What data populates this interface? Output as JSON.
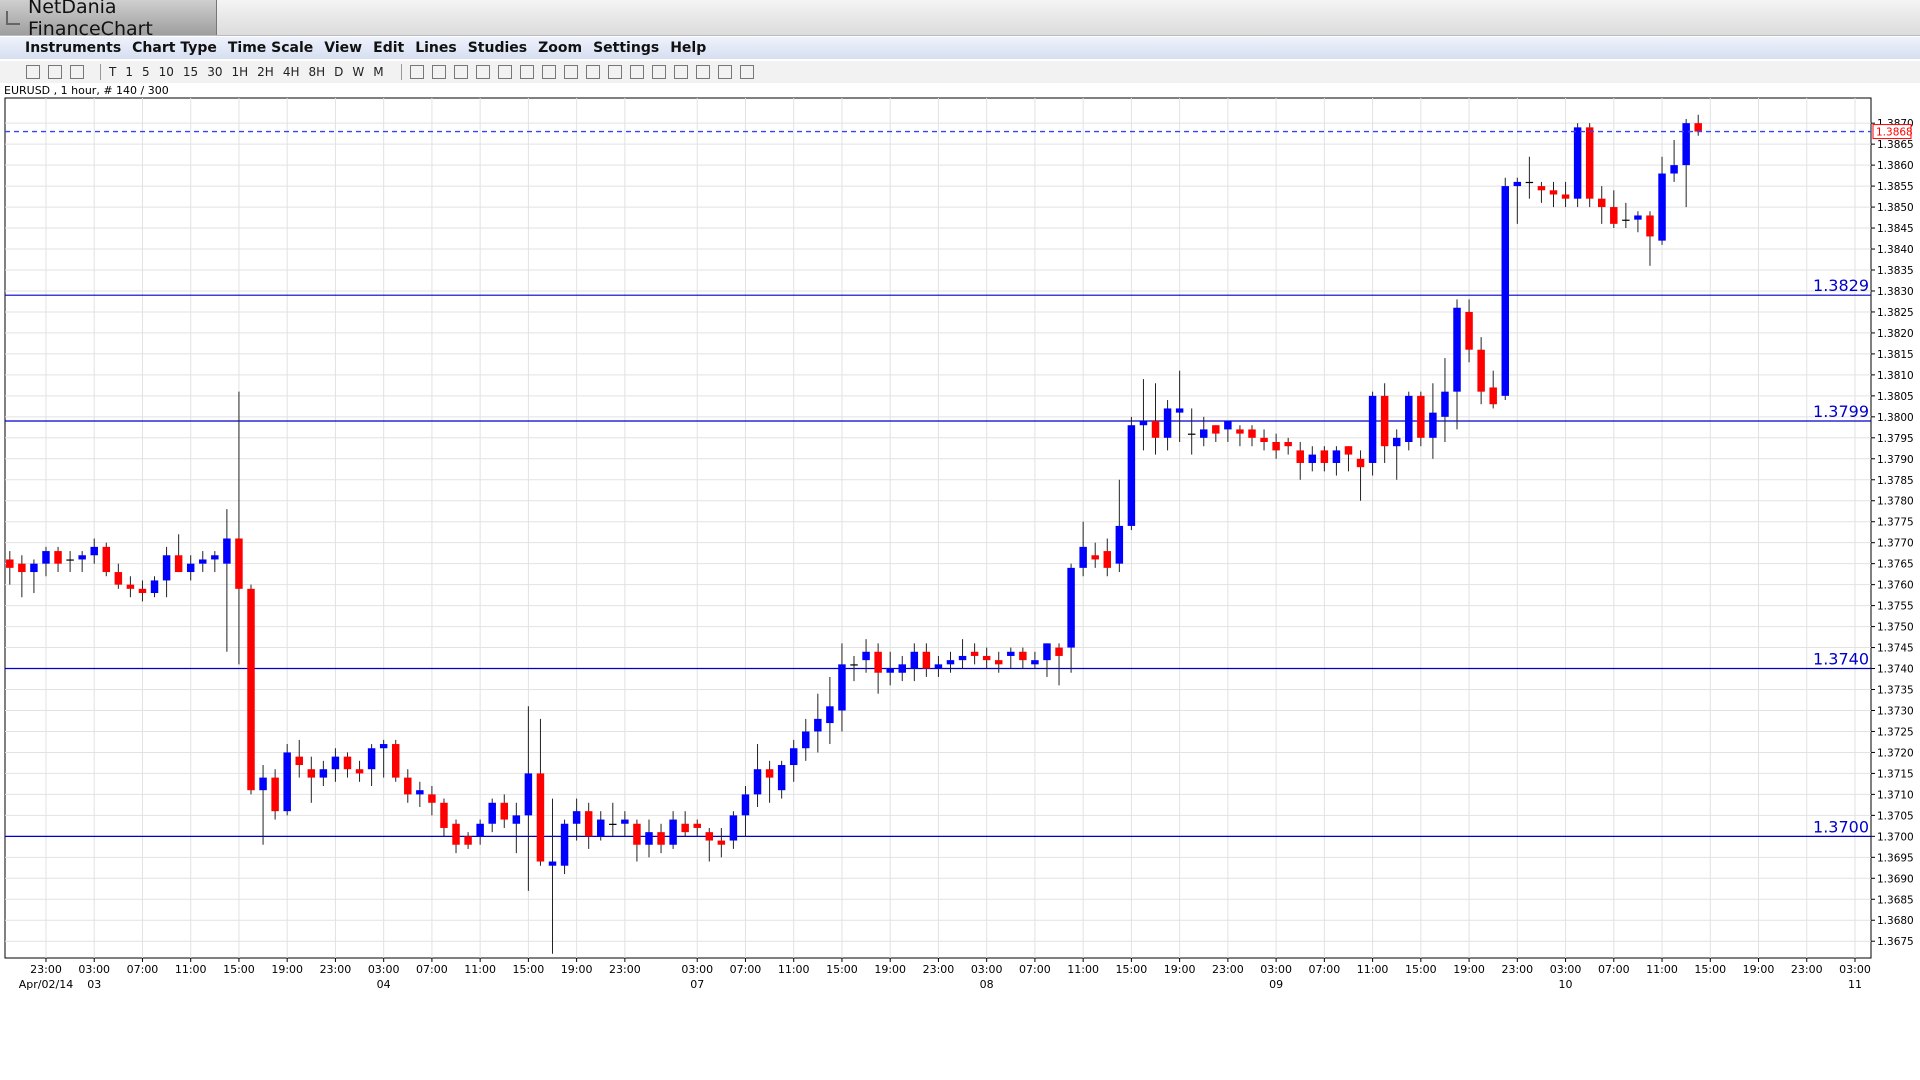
{
  "ui": {
    "app_title": "NetDania FinanceChart",
    "menu": [
      "Instruments",
      "Chart Type",
      "Time Scale",
      "View",
      "Edit",
      "Lines",
      "Studies",
      "Zoom",
      "Settings",
      "Help"
    ],
    "toolbar": [
      "T",
      "1",
      "5",
      "10",
      "15",
      "30",
      "1H",
      "2H",
      "4H",
      "8H",
      "D",
      "W",
      "M"
    ]
  },
  "chart_data": {
    "type": "candlestick",
    "subtitle": "EURUSD , 1 hour, # 140 / 300",
    "up_color": "#0000ff",
    "down_color": "#ff0000",
    "grid": true,
    "categories": [
      null,
      null,
      null,
      "23:00",
      null,
      null,
      null,
      "03:00",
      null,
      null,
      null,
      "07:00",
      null,
      null,
      null,
      "11:00",
      null,
      null,
      null,
      "15:00",
      null,
      null,
      null,
      "19:00",
      null,
      null,
      null,
      "23:00",
      null,
      null,
      null,
      "03:00",
      null,
      null,
      null,
      "07:00",
      null,
      null,
      null,
      "11:00",
      null,
      null,
      null,
      "15:00",
      null,
      null,
      null,
      "19:00",
      null,
      null,
      null,
      "23:00",
      null,
      null,
      null,
      null,
      null,
      "03:00",
      null,
      null,
      null,
      "07:00",
      null,
      null,
      null,
      "11:00",
      null,
      null,
      null,
      "15:00",
      null,
      null,
      null,
      "19:00",
      null,
      null,
      null,
      "23:00",
      null,
      null,
      null,
      "03:00",
      null,
      null,
      null,
      "07:00",
      null,
      null,
      null,
      "11:00",
      null,
      null,
      null,
      "15:00",
      null,
      null,
      null,
      "19:00",
      null,
      null,
      null,
      "23:00",
      null,
      null,
      null,
      "03:00",
      null,
      null,
      null,
      "07:00",
      null,
      null,
      null,
      "11:00",
      null,
      null,
      null,
      "15:00",
      null,
      null,
      null,
      "19:00",
      null,
      null,
      null,
      "23:00",
      null,
      null,
      null,
      "03:00",
      null,
      null,
      null,
      "07:00",
      null,
      null,
      null,
      "11:00",
      null,
      null,
      null,
      "15:00",
      null,
      null,
      null,
      "19:00",
      null,
      null,
      null,
      "23:00",
      null,
      null,
      null,
      "03:00"
    ],
    "date_labels": [
      null,
      null,
      null,
      "Apr/02/14",
      null,
      null,
      null,
      "03",
      null,
      null,
      null,
      null,
      null,
      null,
      null,
      null,
      null,
      null,
      null,
      null,
      null,
      null,
      null,
      null,
      null,
      null,
      null,
      null,
      null,
      null,
      null,
      "04",
      null,
      null,
      null,
      null,
      null,
      null,
      null,
      null,
      null,
      null,
      null,
      null,
      null,
      null,
      null,
      null,
      null,
      null,
      null,
      null,
      null,
      null,
      null,
      null,
      null,
      "07",
      null,
      null,
      null,
      null,
      null,
      null,
      null,
      null,
      null,
      null,
      null,
      null,
      null,
      null,
      null,
      null,
      null,
      null,
      null,
      null,
      null,
      null,
      null,
      "08",
      null,
      null,
      null,
      null,
      null,
      null,
      null,
      null,
      null,
      null,
      null,
      null,
      null,
      null,
      null,
      null,
      null,
      null,
      null,
      null,
      null,
      null,
      null,
      "09",
      null,
      null,
      null,
      null,
      null,
      null,
      null,
      null,
      null,
      null,
      null,
      null,
      null,
      null,
      null,
      null,
      null,
      null,
      null,
      null,
      null,
      null,
      null,
      "10",
      null,
      null,
      null,
      null,
      null,
      null,
      null,
      null,
      null,
      null,
      null,
      null,
      null,
      null,
      null,
      null,
      null,
      null,
      null,
      null,
      null,
      null,
      null,
      "11"
    ],
    "open": [
      1.3766,
      1.3765,
      1.3763,
      1.3765,
      1.3768,
      1.3766,
      1.3766,
      1.3767,
      1.3769,
      1.3763,
      1.376,
      1.3759,
      1.3758,
      1.3761,
      1.3767,
      1.3763,
      1.3765,
      1.3766,
      1.3765,
      1.3771,
      1.3759,
      1.3711,
      1.3714,
      1.3706,
      1.3719,
      1.3716,
      1.3714,
      1.3716,
      1.3719,
      1.3716,
      1.3716,
      1.3721,
      1.3722,
      1.3714,
      1.371,
      1.371,
      1.3708,
      1.3703,
      1.37,
      1.37,
      1.3703,
      1.3708,
      1.3703,
      1.3705,
      1.3715,
      1.3693,
      1.3693,
      1.3703,
      1.3706,
      1.37,
      1.3703,
      1.3703,
      1.3703,
      1.3698,
      1.3701,
      1.3698,
      1.3703,
      1.3703,
      1.3701,
      1.3699,
      1.3699,
      1.3705,
      1.371,
      1.3716,
      1.3711,
      1.3717,
      1.3721,
      1.3725,
      1.3727,
      1.373,
      1.3741,
      1.3742,
      1.3744,
      1.3739,
      1.3739,
      1.374,
      1.3744,
      1.374,
      1.3741,
      1.3742,
      1.3744,
      1.3743,
      1.3742,
      1.3743,
      1.3744,
      1.3741,
      1.3742,
      1.3745,
      1.3745,
      1.3764,
      1.3767,
      1.3768,
      1.3765,
      1.3774,
      1.3798,
      1.3799,
      1.3795,
      1.3801,
      1.3796,
      1.3795,
      1.3798,
      1.3797,
      1.3797,
      1.3797,
      1.3795,
      1.3794,
      1.3794,
      1.3792,
      1.3789,
      1.3792,
      1.3789,
      1.3793,
      1.379,
      1.3789,
      1.3805,
      1.3793,
      1.3794,
      1.3805,
      1.3795,
      1.38,
      1.3806,
      1.3825,
      1.3816,
      1.3807,
      1.3805,
      1.3855,
      1.3856,
      1.3855,
      1.3854,
      1.3853,
      1.3852,
      1.3869,
      1.3852,
      1.385,
      1.3847,
      1.3847,
      1.3848,
      1.3842,
      1.3858,
      1.386,
      1.387,
      null,
      null,
      null,
      null,
      null,
      null,
      null,
      null,
      null,
      null,
      null,
      null,
      null
    ],
    "high": [
      1.3768,
      1.3767,
      1.3766,
      1.3769,
      1.3769,
      1.3768,
      1.3768,
      1.3771,
      1.377,
      1.3765,
      1.3762,
      1.3761,
      1.3762,
      1.3769,
      1.3772,
      1.3767,
      1.3768,
      1.3768,
      1.3778,
      1.3806,
      1.376,
      1.3717,
      1.3716,
      1.3722,
      1.3723,
      1.3719,
      1.3718,
      1.3721,
      1.372,
      1.3718,
      1.3722,
      1.3723,
      1.3723,
      1.3716,
      1.3713,
      1.3712,
      1.3709,
      1.3704,
      1.3701,
      1.3704,
      1.3709,
      1.371,
      1.3708,
      1.3731,
      1.3728,
      1.3709,
      1.3704,
      1.3709,
      1.3708,
      1.3706,
      1.3708,
      1.3706,
      1.3704,
      1.3704,
      1.3703,
      1.3706,
      1.3706,
      1.3704,
      1.3702,
      1.3702,
      1.3706,
      1.3712,
      1.3722,
      1.3718,
      1.3718,
      1.3723,
      1.3728,
      1.3734,
      1.3738,
      1.3746,
      1.3743,
      1.3747,
      1.3746,
      1.3744,
      1.3743,
      1.3746,
      1.3746,
      1.3743,
      1.3744,
      1.3747,
      1.3746,
      1.3745,
      1.3744,
      1.3745,
      1.3745,
      1.3744,
      1.3746,
      1.3746,
      1.3765,
      1.3775,
      1.377,
      1.3771,
      1.3785,
      1.38,
      1.3809,
      1.3808,
      1.3804,
      1.3811,
      1.3802,
      1.38,
      1.3798,
      1.3799,
      1.3798,
      1.3798,
      1.3797,
      1.3796,
      1.3795,
      1.3794,
      1.3793,
      1.3793,
      1.3793,
      1.3793,
      1.3792,
      1.3806,
      1.3808,
      1.3797,
      1.3806,
      1.3806,
      1.3808,
      1.3814,
      1.3828,
      1.3828,
      1.3819,
      1.3811,
      1.3857,
      1.3857,
      1.3862,
      1.3856,
      1.3856,
      1.3856,
      1.387,
      1.387,
      1.3855,
      1.3854,
      1.3851,
      1.3849,
      1.3849,
      1.3862,
      1.3866,
      1.3871,
      1.3872,
      null,
      null,
      null,
      null,
      null,
      null,
      null,
      null,
      null,
      null,
      null,
      null,
      null
    ],
    "low": [
      1.376,
      1.3757,
      1.3758,
      1.3762,
      1.3763,
      1.3763,
      1.3763,
      1.3765,
      1.3762,
      1.3759,
      1.3757,
      1.3756,
      1.3757,
      1.3757,
      1.3763,
      1.3761,
      1.3763,
      1.3763,
      1.3744,
      1.3741,
      1.371,
      1.3698,
      1.3704,
      1.3705,
      1.3714,
      1.3708,
      1.3712,
      1.3713,
      1.3714,
      1.3713,
      1.3712,
      1.3714,
      1.3713,
      1.3708,
      1.3707,
      1.3705,
      1.37,
      1.3696,
      1.3697,
      1.3698,
      1.3701,
      1.3702,
      1.3696,
      1.3687,
      1.3693,
      1.3672,
      1.3691,
      1.3699,
      1.3697,
      1.3699,
      1.37,
      1.37,
      1.3694,
      1.3695,
      1.3696,
      1.3697,
      1.37,
      1.37,
      1.3694,
      1.3695,
      1.3697,
      1.37,
      1.3707,
      1.3708,
      1.3709,
      1.3713,
      1.3718,
      1.372,
      1.3722,
      1.3725,
      1.3737,
      1.3739,
      1.3734,
      1.3736,
      1.3737,
      1.3737,
      1.3738,
      1.3738,
      1.3739,
      1.374,
      1.3741,
      1.374,
      1.3739,
      1.374,
      1.374,
      1.374,
      1.3738,
      1.3736,
      1.3739,
      1.3762,
      1.3764,
      1.3762,
      1.3763,
      1.3773,
      1.3792,
      1.3791,
      1.3792,
      1.3794,
      1.3791,
      1.3793,
      1.3794,
      1.3794,
      1.3793,
      1.3793,
      1.3792,
      1.379,
      1.3791,
      1.3785,
      1.3787,
      1.3787,
      1.3786,
      1.3787,
      1.378,
      1.3786,
      1.3789,
      1.3785,
      1.3792,
      1.3793,
      1.379,
      1.3794,
      1.3797,
      1.3813,
      1.3803,
      1.3802,
      1.3804,
      1.3846,
      1.3852,
      1.3851,
      1.385,
      1.385,
      1.385,
      1.385,
      1.3846,
      1.3845,
      1.3845,
      1.3844,
      1.3836,
      1.3841,
      1.3856,
      1.385,
      1.3867,
      null,
      null,
      null,
      null,
      null,
      null,
      null,
      null,
      null,
      null,
      null,
      null,
      null
    ],
    "close": [
      1.3764,
      1.3763,
      1.3765,
      1.3768,
      1.3765,
      1.3766,
      1.3767,
      1.3769,
      1.3763,
      1.376,
      1.3759,
      1.3758,
      1.3761,
      1.3767,
      1.3763,
      1.3765,
      1.3766,
      1.3767,
      1.3771,
      1.3759,
      1.3711,
      1.3714,
      1.3706,
      1.372,
      1.3717,
      1.3714,
      1.3716,
      1.3719,
      1.3716,
      1.3715,
      1.3721,
      1.3722,
      1.3714,
      1.371,
      1.3711,
      1.3708,
      1.3702,
      1.3698,
      1.3698,
      1.3703,
      1.3708,
      1.3704,
      1.3705,
      1.3715,
      1.3694,
      1.3694,
      1.3703,
      1.3706,
      1.37,
      1.3704,
      1.3703,
      1.3704,
      1.3698,
      1.3701,
      1.3698,
      1.3704,
      1.3701,
      1.3702,
      1.3699,
      1.3698,
      1.3705,
      1.371,
      1.3716,
      1.3714,
      1.3717,
      1.3721,
      1.3725,
      1.3728,
      1.3731,
      1.3741,
      1.3741,
      1.3744,
      1.3739,
      1.374,
      1.3741,
      1.3744,
      1.374,
      1.3741,
      1.3742,
      1.3743,
      1.3743,
      1.3742,
      1.3741,
      1.3744,
      1.3742,
      1.3742,
      1.3746,
      1.3743,
      1.3764,
      1.3769,
      1.3766,
      1.3764,
      1.3774,
      1.3798,
      1.3799,
      1.3795,
      1.3802,
      1.3802,
      1.3796,
      1.3797,
      1.3796,
      1.3799,
      1.3796,
      1.3795,
      1.3794,
      1.3792,
      1.3793,
      1.3789,
      1.3791,
      1.3789,
      1.3792,
      1.3791,
      1.3788,
      1.3805,
      1.3793,
      1.3795,
      1.3805,
      1.3795,
      1.3801,
      1.3806,
      1.3826,
      1.3816,
      1.3806,
      1.3803,
      1.3855,
      1.3856,
      1.3856,
      1.3854,
      1.3853,
      1.3852,
      1.3869,
      1.3852,
      1.385,
      1.3846,
      1.3847,
      1.3848,
      1.3843,
      1.3858,
      1.386,
      1.387,
      1.3868,
      null,
      null,
      null,
      null,
      null,
      null,
      null,
      null,
      null,
      null,
      null,
      null,
      null
    ],
    "ylim": [
      1.3671,
      1.3876
    ],
    "yticks": [
      1.3675,
      {
        "value": 1.368,
        "label": "1.3680"
      },
      1.3685,
      {
        "value": 1.369,
        "label": "1.3690"
      },
      1.3695,
      {
        "value": 1.37,
        "label": "1.3700"
      },
      1.3705,
      {
        "value": 1.371,
        "label": "1.3710"
      },
      1.3715,
      {
        "value": 1.372,
        "label": "1.3720"
      },
      1.3725,
      {
        "value": 1.373,
        "label": "1.3730"
      },
      1.3735,
      {
        "value": 1.374,
        "label": "1.3740"
      },
      1.3745,
      {
        "value": 1.375,
        "label": "1.3750"
      },
      1.3755,
      {
        "value": 1.376,
        "label": "1.3760"
      },
      1.3765,
      {
        "value": 1.377,
        "label": "1.3770"
      },
      1.3775,
      {
        "value": 1.378,
        "label": "1.3780"
      },
      1.3785,
      {
        "value": 1.379,
        "label": "1.3790"
      },
      1.3795,
      {
        "value": 1.38,
        "label": "1.3800"
      },
      1.3805,
      {
        "value": 1.381,
        "label": "1.3810"
      },
      1.3815,
      {
        "value": 1.382,
        "label": "1.3820"
      },
      1.3825,
      {
        "value": 1.383,
        "label": "1.3830"
      },
      1.3835,
      {
        "value": 1.384,
        "label": "1.3840"
      },
      1.3845,
      {
        "value": 1.385,
        "label": "1.3850"
      },
      1.3855,
      {
        "value": 1.386,
        "label": "1.3860"
      },
      1.3865,
      {
        "value": 1.387,
        "label": "1.3870"
      }
    ],
    "levels": [
      1.3829,
      1.3799,
      {
        "value": 1.374,
        "label": "1.3740"
      },
      {
        "value": 1.37,
        "label": "1.3700"
      }
    ],
    "level_color": "#0000cc",
    "current_price": 1.3868
  }
}
